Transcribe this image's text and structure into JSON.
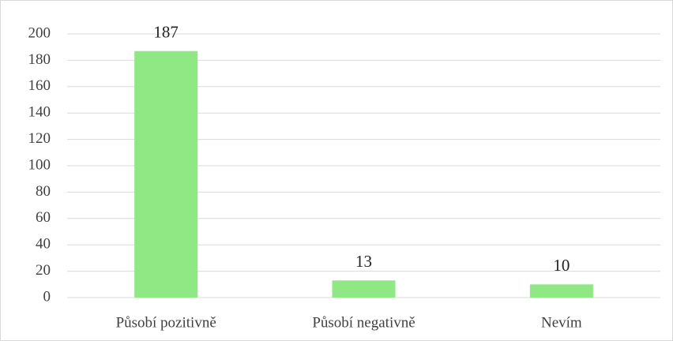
{
  "chart_data": {
    "type": "bar",
    "categories": [
      "Působí pozitivně",
      "Působí negativně",
      "Nevím"
    ],
    "values": [
      187,
      13,
      10
    ],
    "color": "#8fe884",
    "ylim": [
      0,
      200
    ],
    "yticks": [
      0,
      20,
      40,
      60,
      80,
      100,
      120,
      140,
      160,
      180,
      200
    ],
    "grid": true,
    "data_labels": true
  }
}
